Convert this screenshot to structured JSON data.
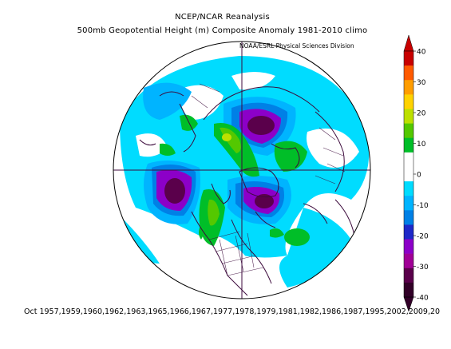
{
  "header": {
    "title": "NCEP/NCAR Reanalysis",
    "subtitle": "500mb Geopotential Height (m) Composite Anomaly 1981-2010 climo",
    "credit": "NOAA/ESRL Physical Sciences Division"
  },
  "footer": {
    "composite_dates": "Oct 1957,1959,1960,1962,1963,1965,1966,1967,1977,1978,1979,1981,1982,1986,1987,1995,2002,2009,20"
  },
  "colorbar": {
    "tick_labels": [
      "40",
      "30",
      "20",
      "10",
      "0",
      "-10",
      "-20",
      "-30",
      "-40"
    ],
    "colors": [
      "#c80000",
      "#ff5a00",
      "#ff9d00",
      "#ffd200",
      "#bde000",
      "#54c800",
      "#00be28",
      "#ffffff",
      "#ffffff",
      "#00dcff",
      "#00b4ff",
      "#0080e6",
      "#1e28c8",
      "#8c00c8",
      "#a00096",
      "#5a004b",
      "#320028"
    ]
  },
  "map": {
    "projection": "north polar stereographic",
    "land_color": "#ffffff",
    "coast_color": "#3c0a3c"
  }
}
